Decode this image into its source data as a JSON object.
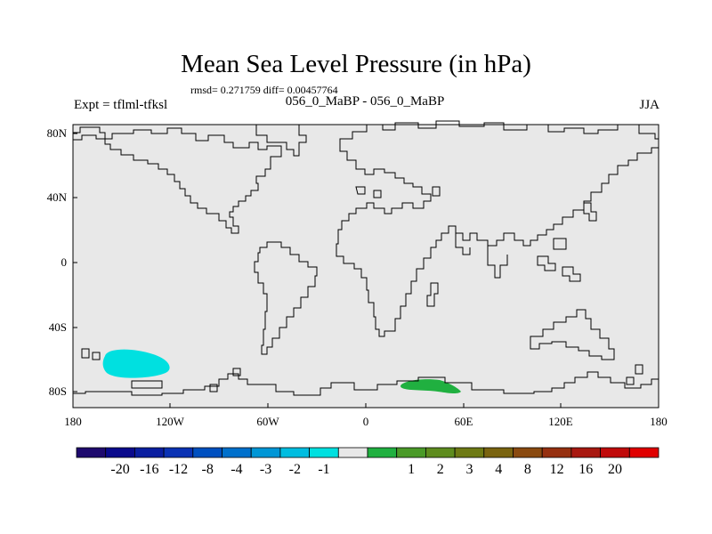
{
  "title": "Mean Sea Level Pressure (in hPa)",
  "stats": "rmsd= 0.271759 diff= 0.00457764",
  "experiment": "Expt = tflml-tfksl",
  "subtitle": "056_0_MaBP - 056_0_MaBP",
  "season": "JJA",
  "map": {
    "background_color": "#e8e8e8",
    "coastline_color": "#000000",
    "lat_labels": [
      "80N",
      "40N",
      "0",
      "40S",
      "80S"
    ],
    "lon_labels": [
      "180",
      "120W",
      "60W",
      "0",
      "60E",
      "120E",
      "180"
    ],
    "anomaly_regions": [
      {
        "name": "south-pacific-negative-anomaly",
        "range": "-2 to -1",
        "color": "#00e0e0"
      },
      {
        "name": "antarctic-coast-positive-anomaly",
        "range": "1 to 2",
        "color": "#20b040"
      }
    ]
  },
  "colorbar": {
    "colors": [
      "#1e0a6e",
      "#0a0a8c",
      "#0a1ea0",
      "#0a32b4",
      "#0050c0",
      "#0070cc",
      "#0096d6",
      "#00bde0",
      "#00e0e0",
      "#e8e8e8",
      "#20b040",
      "#4a9a28",
      "#5e8c1e",
      "#6e7a14",
      "#7a6410",
      "#8a4a10",
      "#963010",
      "#a81810",
      "#c00a0a",
      "#e00000"
    ],
    "labels": [
      "-20",
      "-16",
      "-12",
      "-8",
      "-4",
      "-3",
      "-2",
      "-1",
      "1",
      "2",
      "3",
      "4",
      "8",
      "12",
      "16",
      "20"
    ]
  }
}
